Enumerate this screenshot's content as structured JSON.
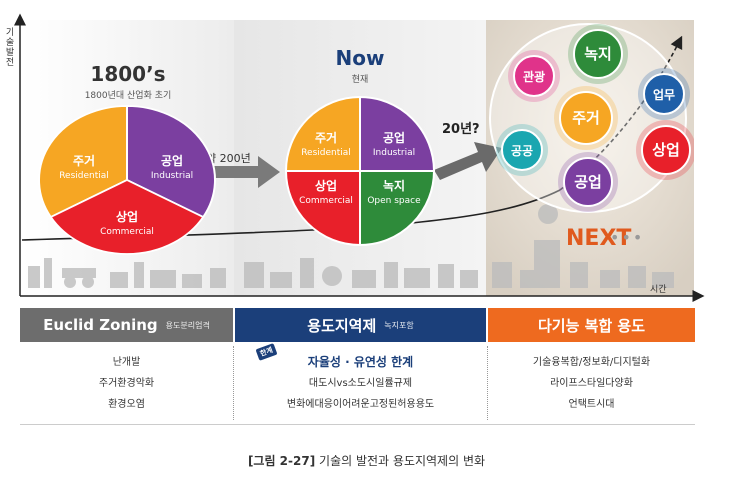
{
  "axes": {
    "y_label": "기술발전",
    "x_label": "시간"
  },
  "eras": {
    "past": {
      "title": "1800’s",
      "subtitle": "1800년대 산업화 초기"
    },
    "now": {
      "title": "Now",
      "subtitle": "현재"
    },
    "next": {
      "title": "NEXT"
    }
  },
  "transitions": {
    "first": "약 200년",
    "second": "20년?"
  },
  "pie_1800": {
    "slices": [
      {
        "ko": "주거",
        "en": "Residential",
        "color": "#f6a623"
      },
      {
        "ko": "공업",
        "en": "Industrial",
        "color": "#7b3fa0"
      },
      {
        "ko": "상업",
        "en": "Commercial",
        "color": "#e8202a"
      }
    ]
  },
  "pie_now": {
    "slices": [
      {
        "ko": "주거",
        "en": "Residential",
        "color": "#f6a623"
      },
      {
        "ko": "공업",
        "en": "Industrial",
        "color": "#7b3fa0"
      },
      {
        "ko": "상업",
        "en": "Commercial",
        "color": "#e8202a"
      },
      {
        "ko": "녹지",
        "en": "Open space",
        "color": "#2e8b3a"
      }
    ]
  },
  "next_bubbles": [
    {
      "label": "녹지",
      "color": "#2e8b3a"
    },
    {
      "label": "관광",
      "color": "#e0338a"
    },
    {
      "label": "업무",
      "color": "#1f5fa8"
    },
    {
      "label": "주거",
      "color": "#f6a623"
    },
    {
      "label": "공공",
      "color": "#1aa6b0"
    },
    {
      "label": "상업",
      "color": "#e8202a"
    },
    {
      "label": "공업",
      "color": "#7b3fa0"
    }
  ],
  "bands": {
    "euclid": {
      "main": "Euclid Zoning",
      "small": "용도분리엄격",
      "color": "#6d6d6d"
    },
    "zoning": {
      "main": "용도지역제",
      "small": "녹지포함",
      "color": "#1b3f7a"
    },
    "multi": {
      "main": "다기능 복합 용도",
      "color": "#ee6a1f"
    }
  },
  "lists": {
    "euclid": [
      "난개발",
      "주거환경악화",
      "환경오염"
    ],
    "zoning": {
      "badge": "한계",
      "headline": "자율성 · 유연성 한계",
      "items": [
        "대도시vs소도시일률규제",
        "변화에대응이어려운고정된허용용도"
      ]
    },
    "multi": [
      "기술융복합/정보화/디지털화",
      "라이프스타일다양화",
      "언택트시대"
    ]
  },
  "caption": {
    "prefix": "[그림 2-27]",
    "text": "기술의 발전과 용도지역제의 변화"
  }
}
